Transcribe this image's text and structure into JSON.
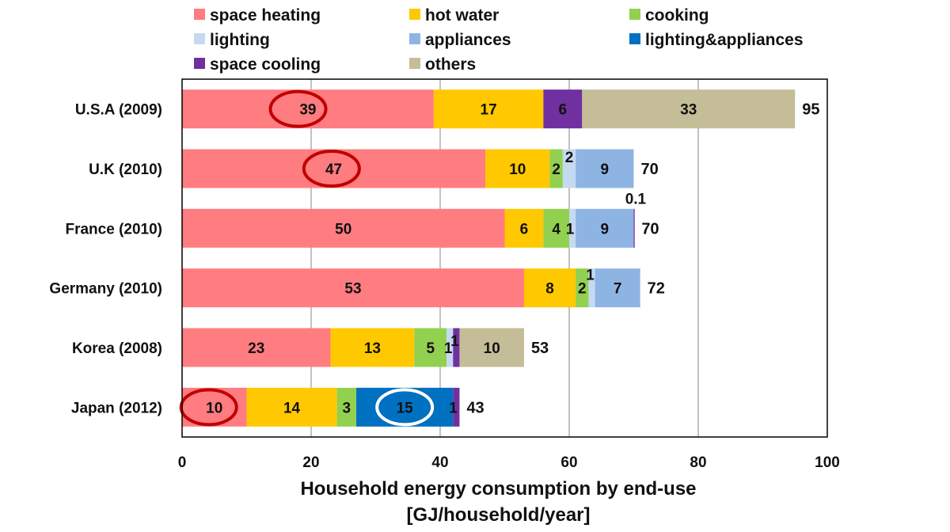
{
  "chart_data": {
    "type": "bar",
    "orientation": "horizontal",
    "stacked": true,
    "categories": [
      "U.S.A (2009)",
      "U.K (2010)",
      "France (2010)",
      "Germany (2010)",
      "Korea (2008)",
      "Japan (2012)"
    ],
    "xlim": [
      0,
      100
    ],
    "xticks": [
      0,
      20,
      40,
      60,
      80,
      100
    ],
    "xlabel": [
      "Household energy consumption by end-use",
      "[GJ/household/year]"
    ],
    "grid": "vertical",
    "legend_position": "top",
    "series": [
      {
        "name": "space heating",
        "color": "#FF7C80",
        "values": [
          39,
          47,
          50,
          53,
          23,
          10
        ],
        "labels": [
          "39",
          "47",
          "50",
          "53",
          "23",
          "10"
        ]
      },
      {
        "name": "hot water",
        "color": "#FFC800",
        "values": [
          17,
          10,
          6,
          8,
          13,
          14
        ],
        "labels": [
          "17",
          "10",
          "6",
          "8",
          "13",
          "14"
        ]
      },
      {
        "name": "cooking",
        "color": "#92D050",
        "values": [
          0,
          2,
          4,
          2,
          5,
          3
        ],
        "labels": [
          "",
          "2",
          "4",
          "2",
          "5",
          "3"
        ]
      },
      {
        "name": "lighting",
        "color": "#C5D9F1",
        "values": [
          0,
          2,
          1,
          1,
          1,
          0
        ],
        "labels": [
          "",
          "2",
          "1",
          "1",
          "1",
          ""
        ]
      },
      {
        "name": "appliances",
        "color": "#8EB4E3",
        "values": [
          0,
          9,
          9,
          7,
          0,
          0
        ],
        "labels": [
          "",
          "9",
          "9",
          "7",
          "",
          ""
        ]
      },
      {
        "name": "lighting&appliances",
        "color": "#0070C0",
        "values": [
          0,
          0,
          0,
          0,
          0,
          15
        ],
        "labels": [
          "",
          "",
          "",
          "",
          "",
          "15"
        ]
      },
      {
        "name": "space cooling",
        "color": "#7030A0",
        "values": [
          6,
          0,
          0.1,
          0,
          1,
          1
        ],
        "labels": [
          "6",
          "",
          "0.1",
          "",
          "1",
          "1"
        ]
      },
      {
        "name": "others",
        "color": "#C4BD97",
        "values": [
          33,
          0,
          0,
          0,
          10,
          0
        ],
        "labels": [
          "33",
          "",
          "",
          "",
          "10",
          ""
        ]
      }
    ],
    "totals": [
      "95",
      "70",
      "70",
      "72",
      "53",
      "43"
    ],
    "highlights": [
      {
        "category": "U.S.A (2009)",
        "series": "space heating",
        "ring_color": "#C00000"
      },
      {
        "category": "U.K (2010)",
        "series": "space heating",
        "ring_color": "#C00000"
      },
      {
        "category": "Japan (2012)",
        "series": "space heating",
        "ring_color": "#C00000"
      },
      {
        "category": "Japan (2012)",
        "series": "lighting&appliances",
        "ring_color": "#FFFFFF"
      }
    ]
  }
}
